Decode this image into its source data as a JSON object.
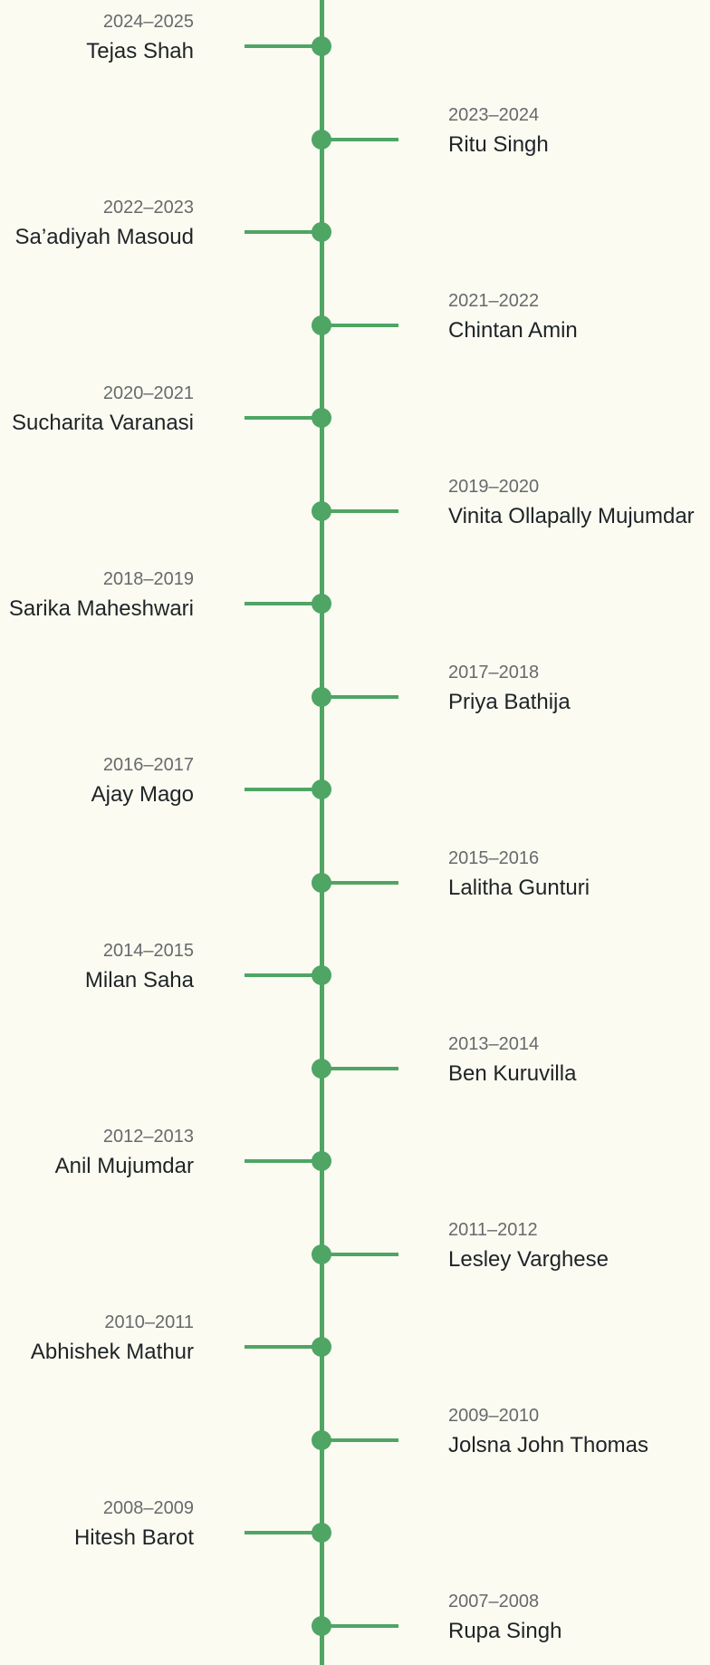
{
  "timeline": {
    "entries": [
      {
        "years": "2024–2025",
        "name": "Tejas Shah",
        "side": "left"
      },
      {
        "years": "2023–2024",
        "name": "Ritu Singh",
        "side": "right"
      },
      {
        "years": "2022–2023",
        "name": "Sa’adiyah Masoud",
        "side": "left"
      },
      {
        "years": "2021–2022",
        "name": "Chintan Amin",
        "side": "right"
      },
      {
        "years": "2020–2021",
        "name": "Sucharita Varanasi",
        "side": "left"
      },
      {
        "years": "2019–2020",
        "name": "Vinita Ollapally Mujumdar",
        "side": "right"
      },
      {
        "years": "2018–2019",
        "name": "Sarika Maheshwari",
        "side": "left"
      },
      {
        "years": "2017–2018",
        "name": "Priya Bathija",
        "side": "right"
      },
      {
        "years": "2016–2017",
        "name": "Ajay Mago",
        "side": "left"
      },
      {
        "years": "2015–2016",
        "name": "Lalitha Gunturi",
        "side": "right"
      },
      {
        "years": "2014–2015",
        "name": "Milan Saha",
        "side": "left"
      },
      {
        "years": "2013–2014",
        "name": "Ben Kuruvilla",
        "side": "right"
      },
      {
        "years": "2012–2013",
        "name": "Anil Mujumdar",
        "side": "left"
      },
      {
        "years": "2011–2012",
        "name": "Lesley Varghese",
        "side": "right"
      },
      {
        "years": "2010–2011",
        "name": "Abhishek Mathur",
        "side": "left"
      },
      {
        "years": "2009–2010",
        "name": "Jolsna John Thomas",
        "side": "right"
      },
      {
        "years": "2008–2009",
        "name": "Hitesh Barot",
        "side": "left"
      },
      {
        "years": "2007–2008",
        "name": "Rupa Singh",
        "side": "right"
      }
    ]
  },
  "colors": {
    "background": "#fcfbf2",
    "accent": "#4fa564",
    "years_text": "#666a6b",
    "name_text": "#1e2426"
  }
}
